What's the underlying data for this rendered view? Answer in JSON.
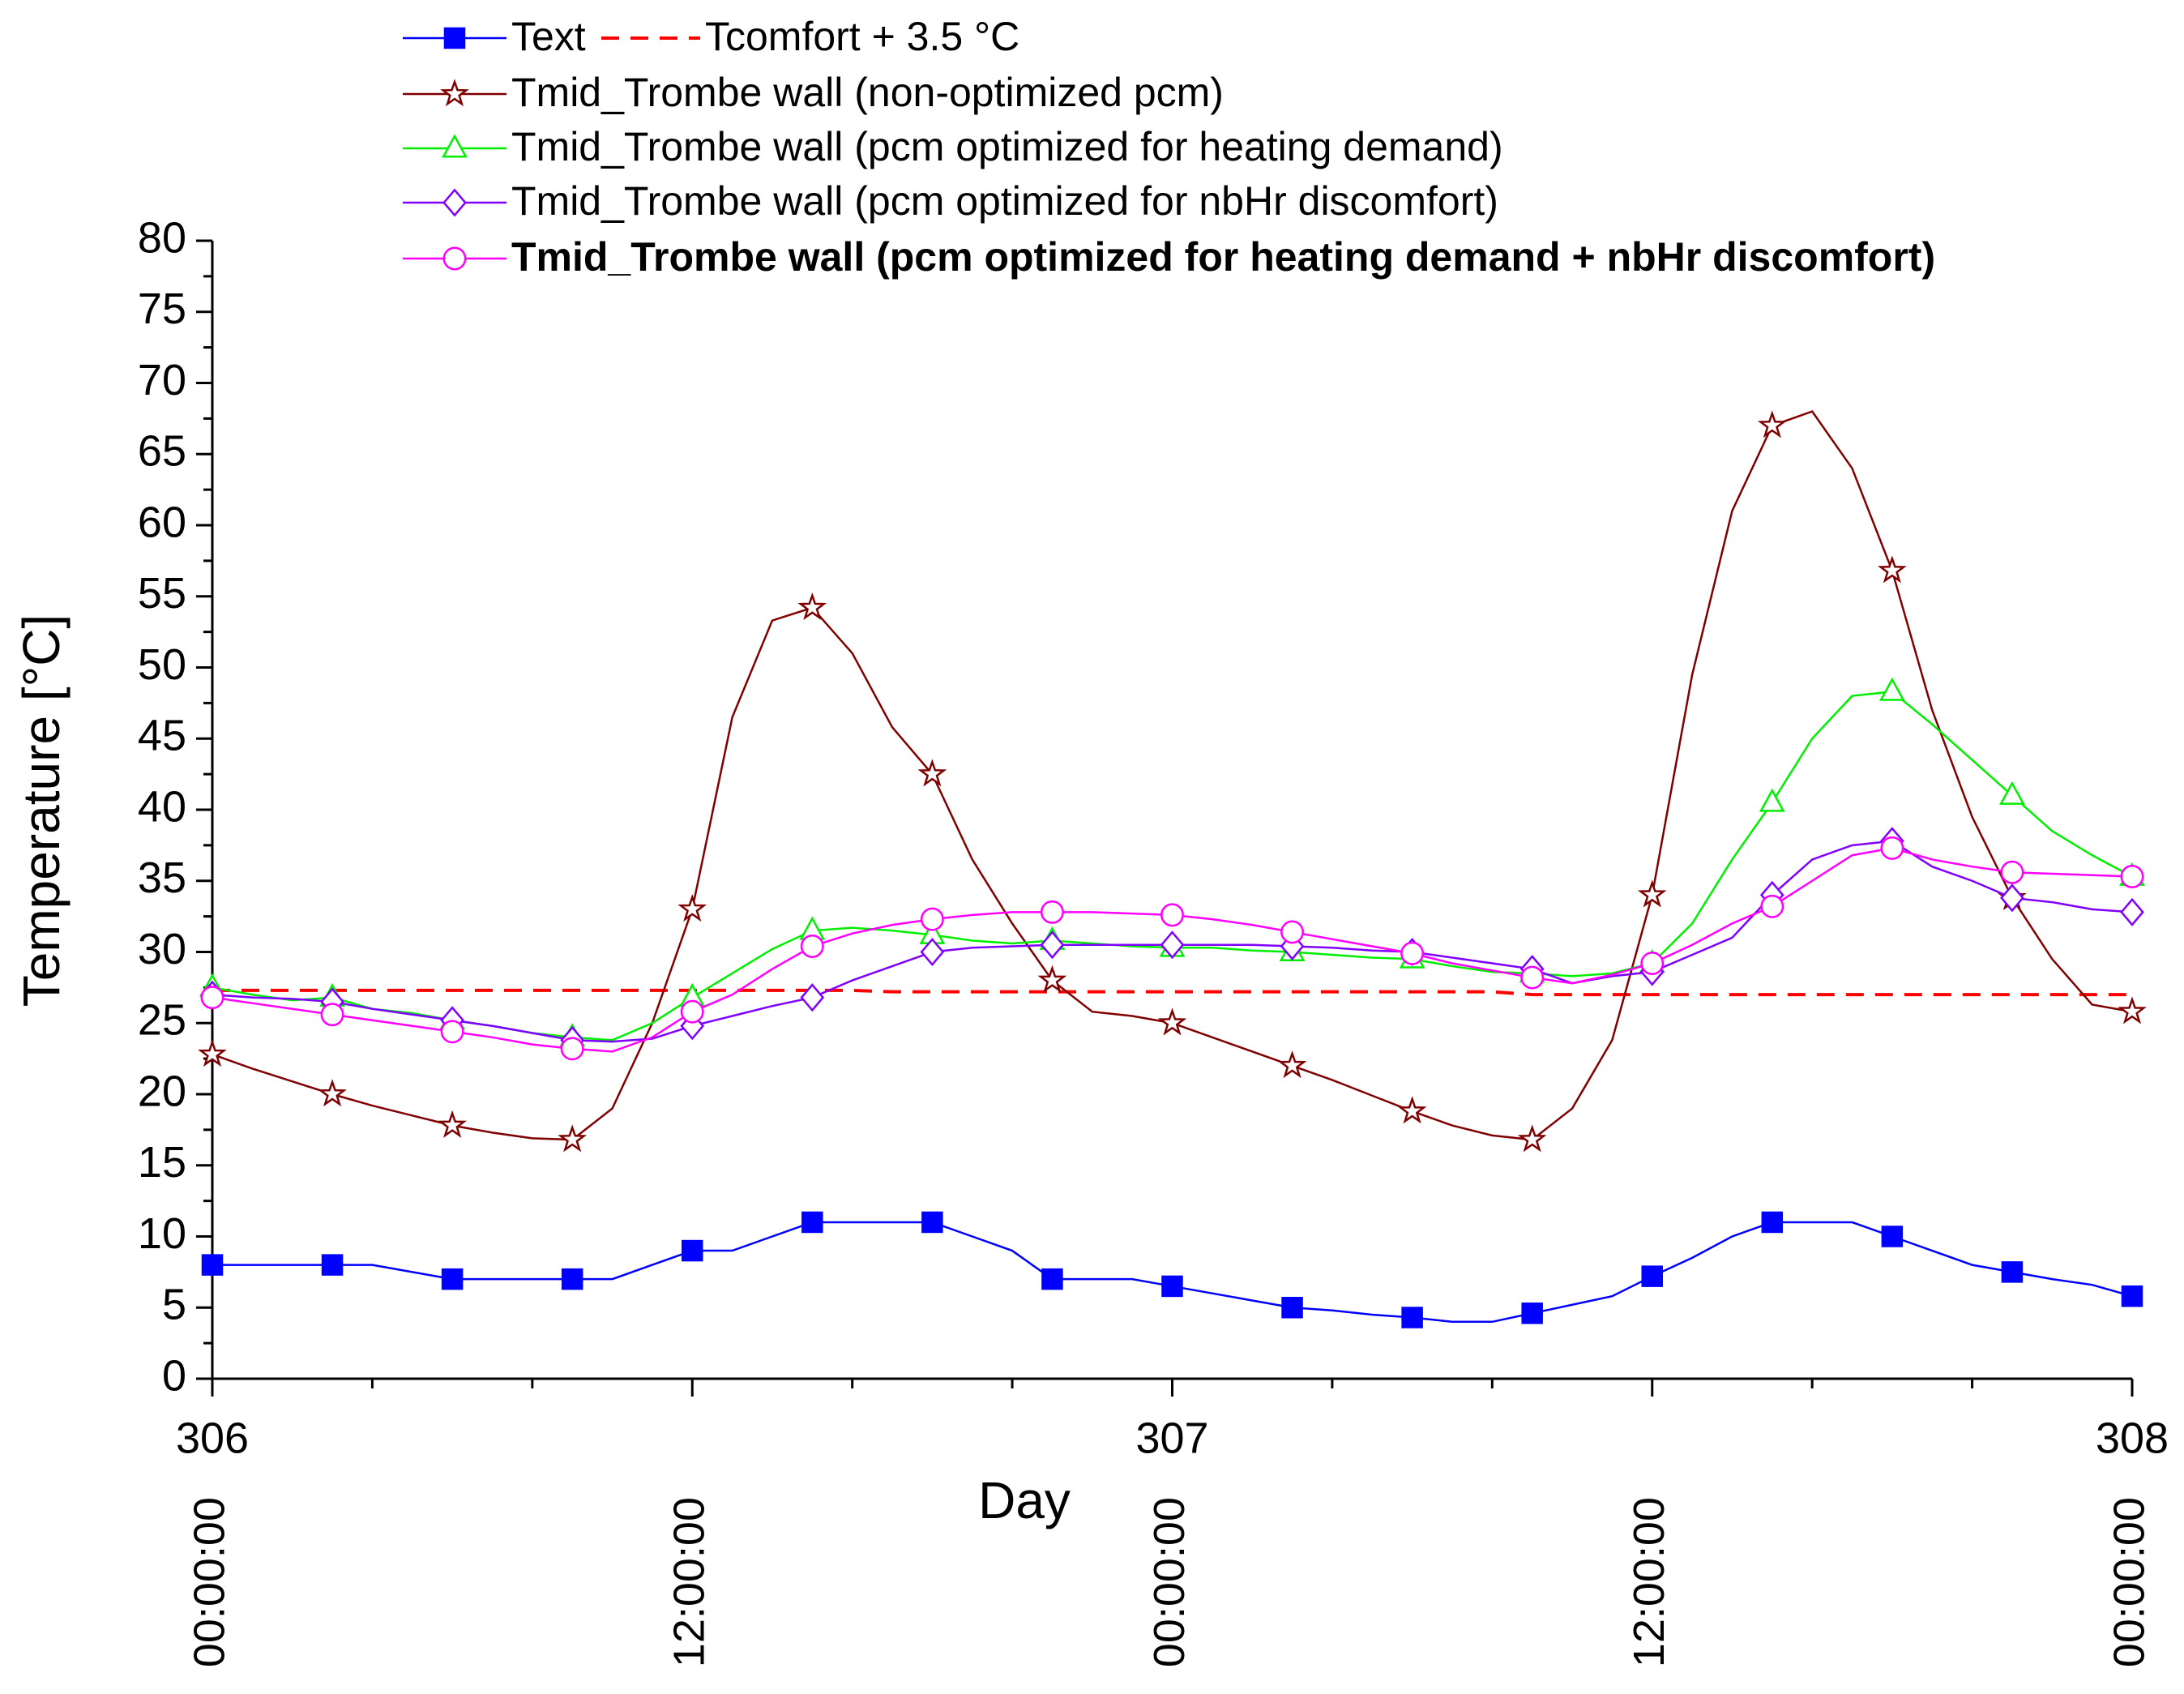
{
  "chart_data": {
    "type": "line",
    "xlabel": "Day",
    "ylabel": "Temperature [°C]",
    "x": [
      306,
      306.0417,
      306.0833,
      306.125,
      306.1667,
      306.2083,
      306.25,
      306.2917,
      306.3333,
      306.375,
      306.4167,
      306.4583,
      306.5,
      306.5417,
      306.5833,
      306.625,
      306.6667,
      306.7083,
      306.75,
      306.7917,
      306.8333,
      306.875,
      306.9167,
      306.9583,
      307,
      307.0417,
      307.0833,
      307.125,
      307.1667,
      307.2083,
      307.25,
      307.2917,
      307.3333,
      307.375,
      307.4167,
      307.4583,
      307.5,
      307.5417,
      307.5833,
      307.625,
      307.6667,
      307.7083,
      307.75,
      307.7917,
      307.8333,
      307.875,
      307.9167,
      307.9583,
      308
    ],
    "xlim": [
      306,
      308
    ],
    "xticks": [
      {
        "value": 306,
        "label": "306"
      },
      {
        "value": 307,
        "label": "307"
      },
      {
        "value": 308,
        "label": "308"
      }
    ],
    "xtick_times": [
      {
        "value": 306,
        "label": "00:00:00"
      },
      {
        "value": 306.5,
        "label": "12:00:00"
      },
      {
        "value": 307,
        "label": "00:00:00"
      },
      {
        "value": 307.5,
        "label": "12:00:00"
      },
      {
        "value": 308,
        "label": "00:00:00"
      }
    ],
    "x_minor_ticks": 2,
    "ylim": [
      0,
      80
    ],
    "yticks": [
      0,
      5,
      10,
      15,
      20,
      25,
      30,
      35,
      40,
      45,
      50,
      55,
      60,
      65,
      70,
      75,
      80
    ],
    "y_minor_ticks": 1,
    "marker_every": 3,
    "series": [
      {
        "name": "Text",
        "color": "#0000ff",
        "marker": "square",
        "values": [
          8,
          8,
          8,
          8,
          8,
          7.5,
          7,
          7,
          7,
          7,
          7,
          8,
          9,
          9,
          10,
          11,
          11,
          11,
          11,
          10,
          9,
          7,
          7,
          7,
          6.5,
          6,
          5.5,
          5,
          4.8,
          4.5,
          4.3,
          4,
          4,
          4.6,
          5.2,
          5.8,
          7.2,
          8.5,
          10,
          11,
          11,
          11,
          10,
          9,
          8,
          7.5,
          7,
          6.6,
          5.8
        ]
      },
      {
        "name": "Tcomfort + 3.5 °C",
        "color": "#ff0000",
        "dash": true,
        "values": [
          27.3,
          27.3,
          27.3,
          27.3,
          27.3,
          27.3,
          27.3,
          27.3,
          27.3,
          27.3,
          27.3,
          27.3,
          27.3,
          27.3,
          27.3,
          27.3,
          27.3,
          27.2,
          27.2,
          27.2,
          27.2,
          27.2,
          27.2,
          27.2,
          27.2,
          27.2,
          27.2,
          27.2,
          27.2,
          27.2,
          27.2,
          27.2,
          27.2,
          27,
          27,
          27,
          27,
          27,
          27,
          27,
          27,
          27,
          27,
          27,
          27,
          27,
          27,
          27,
          27
        ]
      },
      {
        "name": "Tmid_Trombe wall (non-optimized pcm)",
        "color": "#800000",
        "marker": "star",
        "values": [
          22.8,
          21.8,
          20.9,
          20,
          19.2,
          18.5,
          17.8,
          17.3,
          16.9,
          16.8,
          19,
          25,
          33,
          46.5,
          53.3,
          54.2,
          51,
          45.8,
          42.5,
          36.5,
          32,
          28,
          25.8,
          25.5,
          25,
          24,
          23,
          22,
          21,
          19.9,
          18.8,
          17.8,
          17.1,
          16.8,
          19,
          23.8,
          34,
          49.5,
          61,
          67,
          68,
          64,
          56.8,
          47,
          39.5,
          33.8,
          29.5,
          26.3,
          25.8
        ]
      },
      {
        "name": "Tmid_Trombe wall (pcm optimized for heating demand)",
        "color": "#00ee00",
        "marker": "triangle",
        "values": [
          27.5,
          27,
          26.6,
          26.8,
          26,
          25.7,
          25.2,
          24.8,
          24.3,
          24,
          23.8,
          25,
          26.8,
          28.5,
          30.2,
          31.5,
          31.7,
          31.5,
          31.2,
          30.8,
          30.6,
          30.8,
          30.6,
          30.4,
          30.3,
          30.3,
          30.1,
          30,
          29.8,
          29.6,
          29.5,
          29,
          28.6,
          28.5,
          28.3,
          28.5,
          29.2,
          32,
          36.5,
          40.5,
          45,
          48,
          48.3,
          46,
          43.5,
          41,
          38.5,
          36.8,
          35.3
        ]
      },
      {
        "name": "Tmid_Trombe wall (pcm optimized for nbHr discomfort)",
        "color": "#7f00ff",
        "marker": "diamond",
        "values": [
          27,
          26.8,
          26.7,
          26.5,
          26,
          25.6,
          25.2,
          24.8,
          24.3,
          23.8,
          23.7,
          23.9,
          24.8,
          25.5,
          26.2,
          26.8,
          28,
          29,
          30,
          30.3,
          30.4,
          30.5,
          30.5,
          30.5,
          30.5,
          30.5,
          30.5,
          30.4,
          30.3,
          30.1,
          30,
          29.6,
          29.2,
          28.8,
          27.8,
          28.3,
          28.6,
          29.8,
          31,
          34,
          36.5,
          37.5,
          37.8,
          36,
          35,
          33.8,
          33.5,
          33,
          32.8
        ]
      },
      {
        "name": "Tmid_Trombe wall (pcm optimized for heating demand + nbHr discomfort)",
        "color": "#ff00ff",
        "marker": "circle",
        "bold": true,
        "values": [
          26.8,
          26.4,
          26,
          25.6,
          25.2,
          24.8,
          24.4,
          24,
          23.5,
          23.2,
          23,
          24,
          25.8,
          27,
          28.8,
          30.4,
          31.3,
          31.9,
          32.3,
          32.6,
          32.8,
          32.8,
          32.8,
          32.7,
          32.6,
          32.3,
          31.9,
          31.4,
          30.9,
          30.4,
          29.9,
          29.2,
          28.7,
          28.2,
          27.8,
          28.4,
          29.2,
          30.5,
          32,
          33.2,
          35,
          36.8,
          37.3,
          36.5,
          36,
          35.6,
          35.5,
          35.4,
          35.3
        ]
      }
    ]
  }
}
